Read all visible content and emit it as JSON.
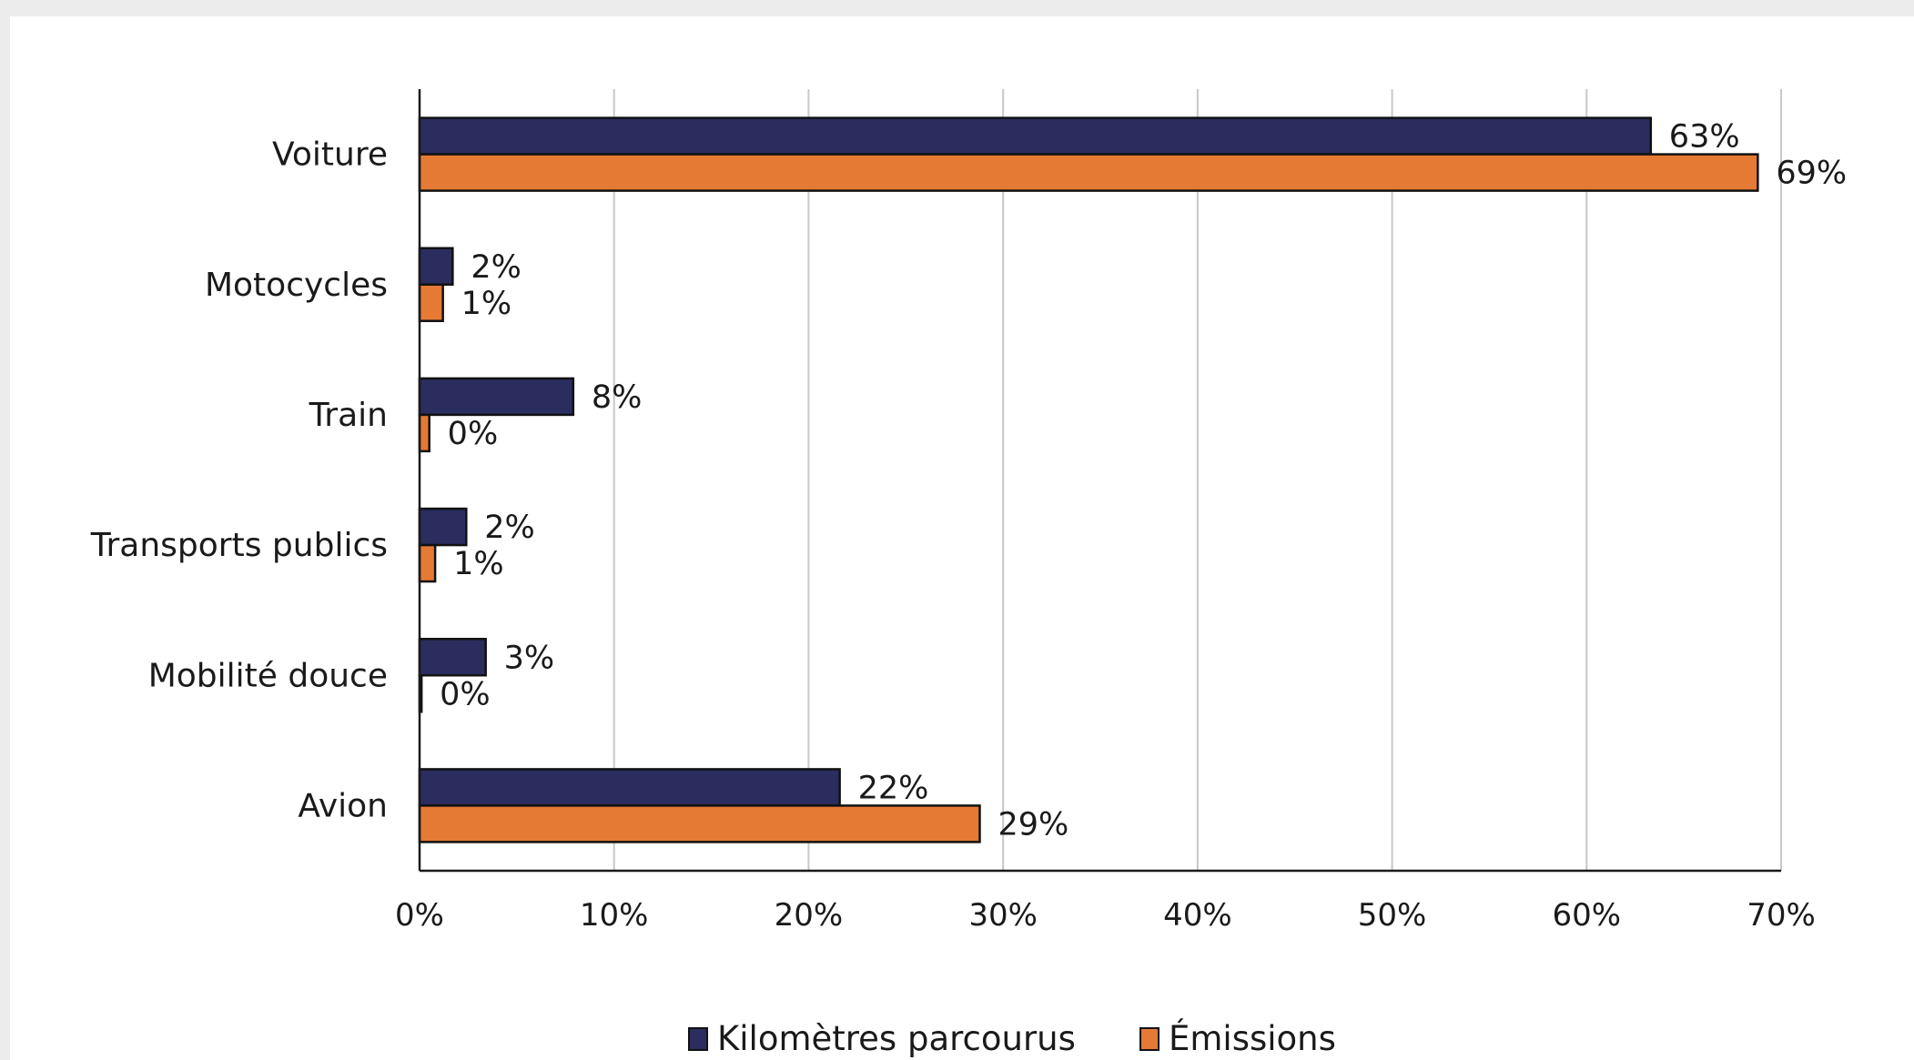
{
  "chart_data": {
    "type": "bar",
    "orientation": "horizontal",
    "categories": [
      "Voiture",
      "Motocycles",
      "Train",
      "Transports publics",
      "Mobilité douce",
      "Avion"
    ],
    "series": [
      {
        "name": "Kilomètres parcourus",
        "color": "#2b2d5e",
        "values": [
          63.3,
          1.7,
          7.9,
          2.4,
          3.4,
          21.6
        ],
        "labels": [
          "63%",
          "2%",
          "8%",
          "2%",
          "3%",
          "22%"
        ]
      },
      {
        "name": "Émissions",
        "color": "#e57a35",
        "values": [
          68.8,
          1.2,
          0.5,
          0.8,
          0.1,
          28.8
        ],
        "labels": [
          "69%",
          "1%",
          "0%",
          "1%",
          "0%",
          "29%"
        ]
      }
    ],
    "x_ticks": [
      "0%",
      "10%",
      "20%",
      "30%",
      "40%",
      "50%",
      "60%",
      "70%"
    ],
    "xlim": [
      0,
      70
    ],
    "x_unit": "%",
    "grid": true,
    "legend_position": "bottom",
    "title": "",
    "xlabel": "",
    "ylabel": ""
  }
}
